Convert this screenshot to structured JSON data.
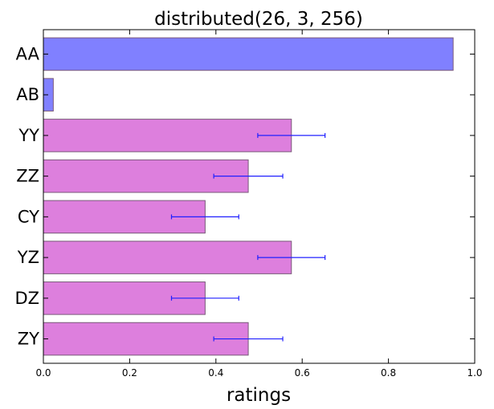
{
  "chart_data": {
    "type": "bar",
    "orientation": "horizontal",
    "title": "distributed(26, 3, 256)",
    "xlabel": "ratings",
    "ylabel": "",
    "xlim": [
      0.0,
      1.0
    ],
    "x_ticks": [
      "0.0",
      "0.2",
      "0.4",
      "0.6",
      "0.8",
      "1.0"
    ],
    "grid": false,
    "categories": [
      "AA",
      "AB",
      "YY",
      "ZZ",
      "CY",
      "YZ",
      "DZ",
      "ZY"
    ],
    "values": [
      0.95,
      0.023,
      0.575,
      0.475,
      0.375,
      0.575,
      0.375,
      0.475
    ],
    "error": [
      null,
      null,
      0.078,
      0.08,
      0.078,
      0.078,
      0.078,
      0.08
    ],
    "bar_colors": [
      "#8080ff",
      "#8080ff",
      "#dd7fdd",
      "#dd7fdd",
      "#dd7fdd",
      "#dd7fdd",
      "#dd7fdd",
      "#dd7fdd"
    ],
    "error_color": "#2020ff"
  }
}
